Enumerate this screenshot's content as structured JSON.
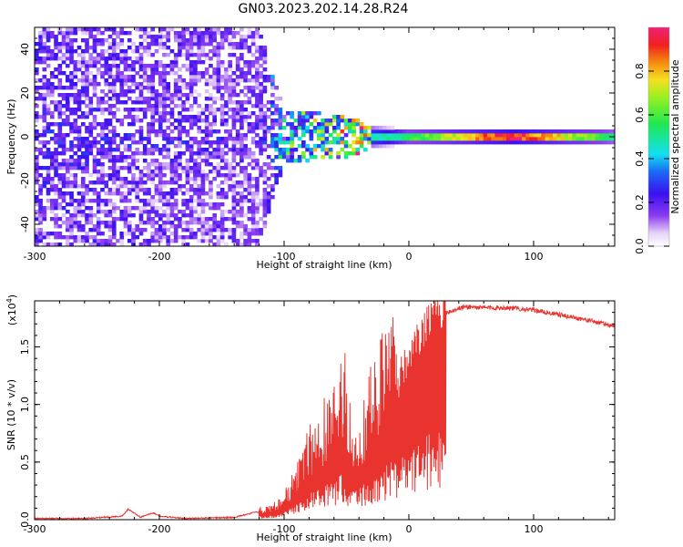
{
  "title": "GN03.2023.202.14.28.R24",
  "chart_data": [
    {
      "type": "heatmap",
      "xlabel": "Height of straight line (km)",
      "ylabel": "Frequency (Hz)",
      "xlim": [
        -300,
        165
      ],
      "ylim": [
        -50,
        50
      ],
      "xticks": [
        -300,
        -200,
        -100,
        0,
        100
      ],
      "xtick_labels": [
        "-300",
        "-200",
        "-100",
        "0",
        "100"
      ],
      "yticks": [
        -40,
        -20,
        0,
        20,
        40
      ],
      "ytick_labels": [
        "-40",
        "-20",
        "0",
        "20",
        "40"
      ],
      "colorbar": {
        "label": "Normalized spectral amplitude",
        "range": [
          0,
          1
        ],
        "ticks": [
          0,
          0.2,
          0.4,
          0.6,
          0.8
        ],
        "tick_labels": [
          "0.0",
          "0.2",
          "0.4",
          "0.6",
          "0.8"
        ],
        "colormap": "rainbow (white → violet → blue → cyan → green → yellow → red)"
      },
      "description_points": [
        {
          "x": -300,
          "band_halfwidth_hz": 50,
          "amplitude": 0.15
        },
        {
          "x": -120,
          "band_halfwidth_hz": 50,
          "amplitude": 0.12
        },
        {
          "x": -100,
          "band_halfwidth_hz": 12,
          "amplitude": 0.2
        },
        {
          "x": -50,
          "band_halfwidth_hz": 10,
          "amplitude": 0.35
        },
        {
          "x": -30,
          "band_halfwidth_hz": 5,
          "amplitude": 0.45
        },
        {
          "x": 0,
          "band_halfwidth_hz": 3,
          "amplitude": 0.55
        },
        {
          "x": 85,
          "band_halfwidth_hz": 3,
          "amplitude": 0.95
        },
        {
          "x": 165,
          "band_halfwidth_hz": 3,
          "amplitude": 0.5
        }
      ]
    },
    {
      "type": "line",
      "xlabel": "Height of straight line (km)",
      "ylabel": "SNR (10 * v/v)",
      "y_multiplier_label": "(x10",
      "y_multiplier_exp": "4",
      "y_multiplier_close": ")",
      "xlim": [
        -300,
        165
      ],
      "ylim": [
        0,
        1.9
      ],
      "xticks": [
        -300,
        -200,
        -100,
        0,
        100
      ],
      "xtick_labels": [
        "-300",
        "-200",
        "-100",
        "0",
        "100"
      ],
      "yticks": [
        0,
        0.5,
        1.0,
        1.5
      ],
      "ytick_labels": [
        "0.0",
        "0.5",
        "1.0",
        "1.5"
      ],
      "series": [
        {
          "color": "#e8332f",
          "x": [
            -300,
            -260,
            -230,
            -225,
            -215,
            -205,
            -200,
            -180,
            -140,
            -125,
            -110,
            -100,
            -90,
            -80,
            -70,
            -60,
            -52,
            -45,
            -40,
            -35,
            -30,
            -25,
            -20,
            -15,
            -10,
            -5,
            0,
            10,
            20,
            30,
            45,
            60,
            80,
            100,
            110,
            120,
            140,
            165
          ],
          "y": [
            0.01,
            0.01,
            0.03,
            0.09,
            0.02,
            0.06,
            0.03,
            0.01,
            0.02,
            0.06,
            0.08,
            0.15,
            0.3,
            0.5,
            0.62,
            0.75,
            0.95,
            0.55,
            0.62,
            0.7,
            0.85,
            0.95,
            1.05,
            1.2,
            1.1,
            1.2,
            1.3,
            1.55,
            1.7,
            1.8,
            1.85,
            1.84,
            1.84,
            1.82,
            1.8,
            1.78,
            1.74,
            1.68
          ]
        }
      ]
    }
  ]
}
